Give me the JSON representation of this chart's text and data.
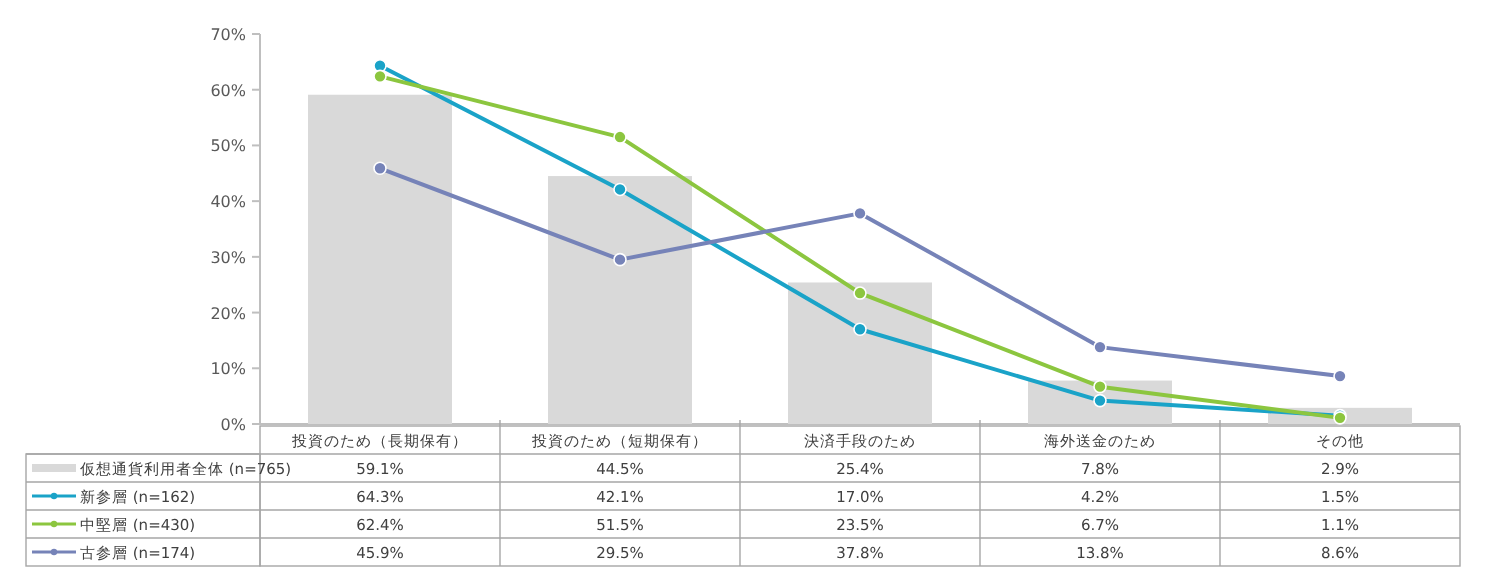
{
  "chart_data": {
    "type": "bar",
    "categories": [
      "投資のため（長期保有）",
      "投資のため（短期保有）",
      "決済手段のため",
      "海外送金のため",
      "その他"
    ],
    "series": [
      {
        "name": "仮想通貨利用者全体 (n=765)",
        "color": "#d9d9d9",
        "values": [
          59.1,
          44.5,
          25.4,
          7.8,
          2.9
        ],
        "value_labels": [
          "59.1%",
          "44.5%",
          "25.4%",
          "7.8%",
          "2.9%"
        ]
      },
      {
        "name": "新参層 (n=162)",
        "type": "line",
        "color": "#1aa3c8",
        "values": [
          64.3,
          42.1,
          17.0,
          4.2,
          1.5
        ],
        "value_labels": [
          "64.3%",
          "42.1%",
          "17.0%",
          "4.2%",
          "1.5%"
        ]
      },
      {
        "name": "中堅層 (n=430)",
        "type": "line",
        "color": "#8cc63f",
        "values": [
          62.4,
          51.5,
          23.5,
          6.7,
          1.1
        ],
        "value_labels": [
          "62.4%",
          "51.5%",
          "23.5%",
          "6.7%",
          "1.1%"
        ]
      },
      {
        "name": "古参層 (n=174)",
        "type": "line",
        "color": "#7683b8",
        "values": [
          45.9,
          29.5,
          37.8,
          13.8,
          8.6
        ],
        "value_labels": [
          "45.9%",
          "29.5%",
          "37.8%",
          "13.8%",
          "8.6%"
        ]
      }
    ],
    "ylim": [
      0,
      70
    ],
    "yticks": [
      {
        "value": 0,
        "label": "0%"
      },
      {
        "value": 10,
        "label": "10%"
      },
      {
        "value": 20,
        "label": "20%"
      },
      {
        "value": 30,
        "label": "30%"
      },
      {
        "value": 40,
        "label": "40%"
      },
      {
        "value": 50,
        "label": "50%"
      },
      {
        "value": 60,
        "label": "60%"
      },
      {
        "value": 70,
        "label": "70%"
      }
    ],
    "marker": "circle",
    "legend": "bottom"
  }
}
